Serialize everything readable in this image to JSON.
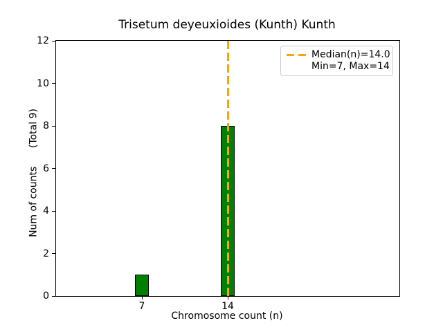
{
  "chart_data": {
    "type": "bar",
    "title": "Trisetum deyeuxioides (Kunth) Kunth",
    "xlabel": "Chromosome count (n)",
    "ylabel": "Num of counts      (Total 9)",
    "categories": [
      7,
      14
    ],
    "values": [
      1,
      8
    ],
    "total_counts": 9,
    "xlim": [
      0,
      28
    ],
    "ylim": [
      0,
      12
    ],
    "xticks": [
      7,
      14
    ],
    "yticks": [
      0,
      2,
      4,
      6,
      8,
      10,
      12
    ],
    "grid": false,
    "bar_color": "#008000",
    "bar_edge_color": "#000000",
    "median_line": {
      "x": 14,
      "value_label": "14.0",
      "color": "#FFA500",
      "style": "dashed"
    },
    "legend": {
      "position": "upper right",
      "entries": [
        {
          "label": "Median(n)=14.0",
          "marker": "orange-dashed-line"
        },
        {
          "label": "Min=7, Max=14",
          "marker": "none"
        }
      ]
    },
    "stats": {
      "median": 14.0,
      "min": 7,
      "max": 14
    }
  }
}
